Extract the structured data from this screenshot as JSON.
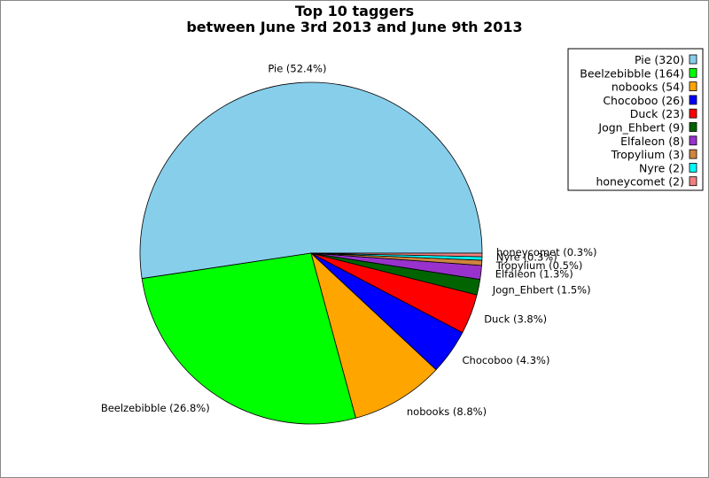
{
  "chart_data": {
    "type": "pie",
    "title": "Top 10 taggers",
    "subtitle": "between June 3rd 2013 and June 9th 2013",
    "slices": [
      {
        "name": "Pie",
        "value": 320,
        "percent_label": "Pie (52.4%)",
        "legend_label": "Pie (320)",
        "color": "#87ceeb"
      },
      {
        "name": "Beelzebibble",
        "value": 164,
        "percent_label": "Beelzebibble (26.8%)",
        "legend_label": "Beelzebibble (164)",
        "color": "#00ff00"
      },
      {
        "name": "nobooks",
        "value": 54,
        "percent_label": "nobooks (8.8%)",
        "legend_label": "nobooks (54)",
        "color": "#ffa500"
      },
      {
        "name": "Chocoboo",
        "value": 26,
        "percent_label": "Chocoboo (4.3%)",
        "legend_label": "Chocoboo (26)",
        "color": "#0000ff"
      },
      {
        "name": "Duck",
        "value": 23,
        "percent_label": "Duck (3.8%)",
        "legend_label": "Duck (23)",
        "color": "#ff0000"
      },
      {
        "name": "Jogn_Ehbert",
        "value": 9,
        "percent_label": "Jogn_Ehbert (1.5%)",
        "legend_label": "Jogn_Ehbert (9)",
        "color": "#006400"
      },
      {
        "name": "Elfaleon",
        "value": 8,
        "percent_label": "Elfaleon (1.3%)",
        "legend_label": "Elfaleon (8)",
        "color": "#9932cc"
      },
      {
        "name": "Tropylium",
        "value": 3,
        "percent_label": "Tropylium (0.5%)",
        "legend_label": "Tropylium (3)",
        "color": "#cd853f"
      },
      {
        "name": "Nyre",
        "value": 2,
        "percent_label": "Nyre (0.3%)",
        "legend_label": "Nyre (2)",
        "color": "#00ffff"
      },
      {
        "name": "honeycomet",
        "value": 2,
        "percent_label": "honeycomet (0.3%)",
        "legend_label": "honeycomet (2)",
        "color": "#f08080"
      }
    ],
    "legend_position": "top-right"
  }
}
